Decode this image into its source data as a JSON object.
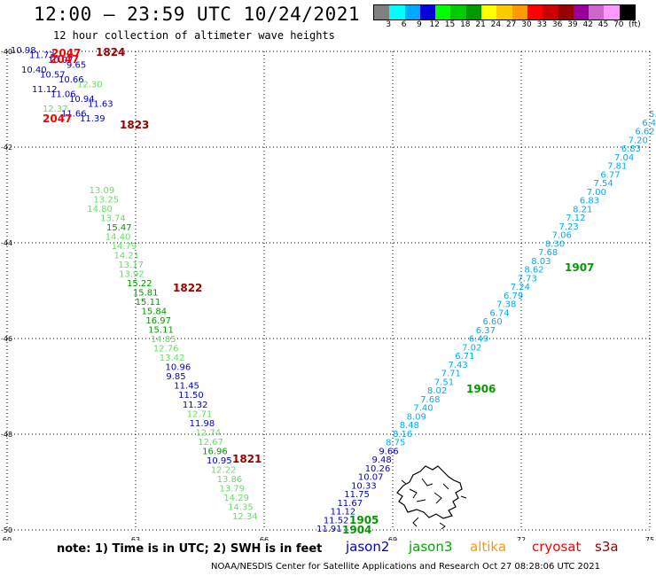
{
  "header": {
    "title": "12:00 – 23:59 UTC 10/24/2021",
    "subtitle": "12 hour collection of altimeter wave heights"
  },
  "colorbar": {
    "unit": "(ft)",
    "ticks": [
      "3",
      "6",
      "9",
      "12",
      "15",
      "18",
      "21",
      "24",
      "27",
      "30",
      "33",
      "36",
      "39",
      "42",
      "45",
      "70"
    ],
    "colors": [
      "#808080",
      "#00ffff",
      "#00aaff",
      "#0000dd",
      "#00ff00",
      "#00cc00",
      "#009900",
      "#ffff00",
      "#ffcc00",
      "#ff9900",
      "#ff0000",
      "#cc0000",
      "#990000",
      "#990099",
      "#cc66cc",
      "#ff99ff",
      "#000000"
    ]
  },
  "map": {
    "lat_labels": [
      "-40",
      "-42",
      "-44",
      "-46",
      "-48",
      "-50"
    ],
    "lon_labels": [
      "60",
      "63",
      "66",
      "69",
      "72",
      "75"
    ],
    "lat_range": [
      -50,
      -40
    ],
    "lon_range": [
      60,
      75
    ]
  },
  "tracks": [
    {
      "name": "track-1821-1824",
      "color": "#0000cc",
      "points": [
        {
          "v": "10.98",
          "c": "#0000cc"
        },
        {
          "v": "11.73",
          "c": "#0000cc"
        },
        {
          "v": "10.07",
          "c": "#0000cc"
        },
        {
          "v": "9.65",
          "c": "#0000cc"
        },
        {
          "v": "10.40",
          "c": "#0000cc"
        },
        {
          "v": "10.57",
          "c": "#0000cc"
        },
        {
          "v": "10.66",
          "c": "#0000cc"
        },
        {
          "v": "12.30",
          "c": "#66dd66"
        },
        {
          "v": "11.12",
          "c": "#0000cc"
        },
        {
          "v": "11.06",
          "c": "#0000cc"
        },
        {
          "v": "10.94",
          "c": "#0000cc"
        },
        {
          "v": "11.63",
          "c": "#0000cc"
        },
        {
          "v": "12.37",
          "c": "#66dd66"
        },
        {
          "v": "11.66",
          "c": "#0000cc"
        },
        {
          "v": "11.39",
          "c": "#0000cc"
        },
        {
          "v": "13.09",
          "c": "#66dd66"
        },
        {
          "v": "13.25",
          "c": "#66dd66"
        },
        {
          "v": "14.80",
          "c": "#66dd66"
        },
        {
          "v": "13.74",
          "c": "#66dd66"
        },
        {
          "v": "15.47",
          "c": "#009900"
        },
        {
          "v": "14.40",
          "c": "#66dd66"
        },
        {
          "v": "14.79",
          "c": "#66dd66"
        },
        {
          "v": "14.21",
          "c": "#66dd66"
        },
        {
          "v": "13.17",
          "c": "#66dd66"
        },
        {
          "v": "13.92",
          "c": "#66dd66"
        },
        {
          "v": "15.22",
          "c": "#009900"
        },
        {
          "v": "15.81",
          "c": "#009900"
        },
        {
          "v": "15.11",
          "c": "#009900"
        },
        {
          "v": "15.84",
          "c": "#009900"
        },
        {
          "v": "16.97",
          "c": "#009900"
        },
        {
          "v": "15.11",
          "c": "#009900"
        },
        {
          "v": "14.85",
          "c": "#66dd66"
        },
        {
          "v": "12.76",
          "c": "#66dd66"
        },
        {
          "v": "13.42",
          "c": "#66dd66"
        },
        {
          "v": "10.96",
          "c": "#0000cc"
        },
        {
          "v": "9.85",
          "c": "#0000cc"
        },
        {
          "v": "11.45",
          "c": "#0000cc"
        },
        {
          "v": "11.50",
          "c": "#0000cc"
        },
        {
          "v": "11.32",
          "c": "#0000cc"
        },
        {
          "v": "12.71",
          "c": "#66dd66"
        },
        {
          "v": "11.98",
          "c": "#0000cc"
        },
        {
          "v": "12.74",
          "c": "#66dd66"
        },
        {
          "v": "12.67",
          "c": "#66dd66"
        },
        {
          "v": "16.96",
          "c": "#009900"
        },
        {
          "v": "10.95",
          "c": "#0000cc"
        },
        {
          "v": "12.22",
          "c": "#66dd66"
        },
        {
          "v": "13.86",
          "c": "#66dd66"
        },
        {
          "v": "13.79",
          "c": "#66dd66"
        },
        {
          "v": "14.29",
          "c": "#66dd66"
        },
        {
          "v": "14.35",
          "c": "#66dd66"
        },
        {
          "v": "12.34",
          "c": "#66dd66"
        }
      ]
    },
    {
      "name": "track-1904-1907",
      "color": "#00aaff",
      "points": [
        {
          "v": "11.91",
          "c": "#0000cc"
        },
        {
          "v": "11.52",
          "c": "#0000cc"
        },
        {
          "v": "11.12",
          "c": "#0000cc"
        },
        {
          "v": "11.67",
          "c": "#0000cc"
        },
        {
          "v": "11.75",
          "c": "#0000cc"
        },
        {
          "v": "10.33",
          "c": "#0000cc"
        },
        {
          "v": "10.07",
          "c": "#0000cc"
        },
        {
          "v": "10.26",
          "c": "#0000cc"
        },
        {
          "v": "9.48",
          "c": "#0000cc"
        },
        {
          "v": "9.66",
          "c": "#0000cc"
        },
        {
          "v": "8.75",
          "c": "#00aaff"
        },
        {
          "v": "8.16",
          "c": "#00aaff"
        },
        {
          "v": "8.48",
          "c": "#00aaff"
        },
        {
          "v": "8.09",
          "c": "#00aaff"
        },
        {
          "v": "7.40",
          "c": "#00aaff"
        },
        {
          "v": "7.68",
          "c": "#00aaff"
        },
        {
          "v": "8.02",
          "c": "#00aaff"
        },
        {
          "v": "7.51",
          "c": "#00aaff"
        },
        {
          "v": "7.71",
          "c": "#00aaff"
        },
        {
          "v": "7.43",
          "c": "#00aaff"
        },
        {
          "v": "6.71",
          "c": "#00aaff"
        },
        {
          "v": "7.02",
          "c": "#00aaff"
        },
        {
          "v": "6.49",
          "c": "#00aaff"
        },
        {
          "v": "6.37",
          "c": "#00aaff"
        },
        {
          "v": "6.60",
          "c": "#00aaff"
        },
        {
          "v": "6.74",
          "c": "#00aaff"
        },
        {
          "v": "7.38",
          "c": "#00aaff"
        },
        {
          "v": "6.79",
          "c": "#00aaff"
        },
        {
          "v": "7.24",
          "c": "#00aaff"
        },
        {
          "v": "7.73",
          "c": "#00aaff"
        },
        {
          "v": "8.62",
          "c": "#00aaff"
        },
        {
          "v": "8.03",
          "c": "#00aaff"
        },
        {
          "v": "7.68",
          "c": "#00aaff"
        },
        {
          "v": "8.30",
          "c": "#00aaff"
        },
        {
          "v": "7.06",
          "c": "#00aaff"
        },
        {
          "v": "7.23",
          "c": "#00aaff"
        },
        {
          "v": "7.12",
          "c": "#00aaff"
        },
        {
          "v": "8.21",
          "c": "#00aaff"
        },
        {
          "v": "6.83",
          "c": "#00aaff"
        },
        {
          "v": "7.00",
          "c": "#00aaff"
        },
        {
          "v": "7.54",
          "c": "#00aaff"
        },
        {
          "v": "6.77",
          "c": "#00aaff"
        },
        {
          "v": "7.81",
          "c": "#00aaff"
        },
        {
          "v": "7.04",
          "c": "#00aaff"
        },
        {
          "v": "6.83",
          "c": "#00aaff"
        },
        {
          "v": "7.20",
          "c": "#00aaff"
        },
        {
          "v": "6.62",
          "c": "#00aaff"
        },
        {
          "v": "6.4",
          "c": "#00aaff"
        },
        {
          "v": "5.",
          "c": "#00aaff"
        }
      ]
    }
  ],
  "time_labels": [
    {
      "text": "1824",
      "color": "#990000"
    },
    {
      "text": "2047",
      "color": "#ff0000"
    },
    {
      "text": "2047",
      "color": "#ff0000"
    },
    {
      "text": "2047",
      "color": "#ff0000"
    },
    {
      "text": "1823",
      "color": "#990000"
    },
    {
      "text": "1822",
      "color": "#990000"
    },
    {
      "text": "1821",
      "color": "#990000"
    },
    {
      "text": "1907",
      "color": "#009900"
    },
    {
      "text": "1906",
      "color": "#009900"
    },
    {
      "text": "1905",
      "color": "#009900"
    },
    {
      "text": "1904",
      "color": "#009900"
    }
  ],
  "footer": {
    "note": "note: 1) Time is in UTC; 2) SWH is in feet",
    "legend": [
      {
        "label": "jason2",
        "color": "#0000cc"
      },
      {
        "label": "jason3",
        "color": "#00aa00"
      },
      {
        "label": "altika",
        "color": "#ff9900"
      },
      {
        "label": "cryosat",
        "color": "#ff0000"
      },
      {
        "label": "s3a",
        "color": "#990000"
      }
    ],
    "credit": "NOAA/NESDIS Center for Satellite Applications and Research     Oct 27 08:28:06 UTC 2021"
  }
}
